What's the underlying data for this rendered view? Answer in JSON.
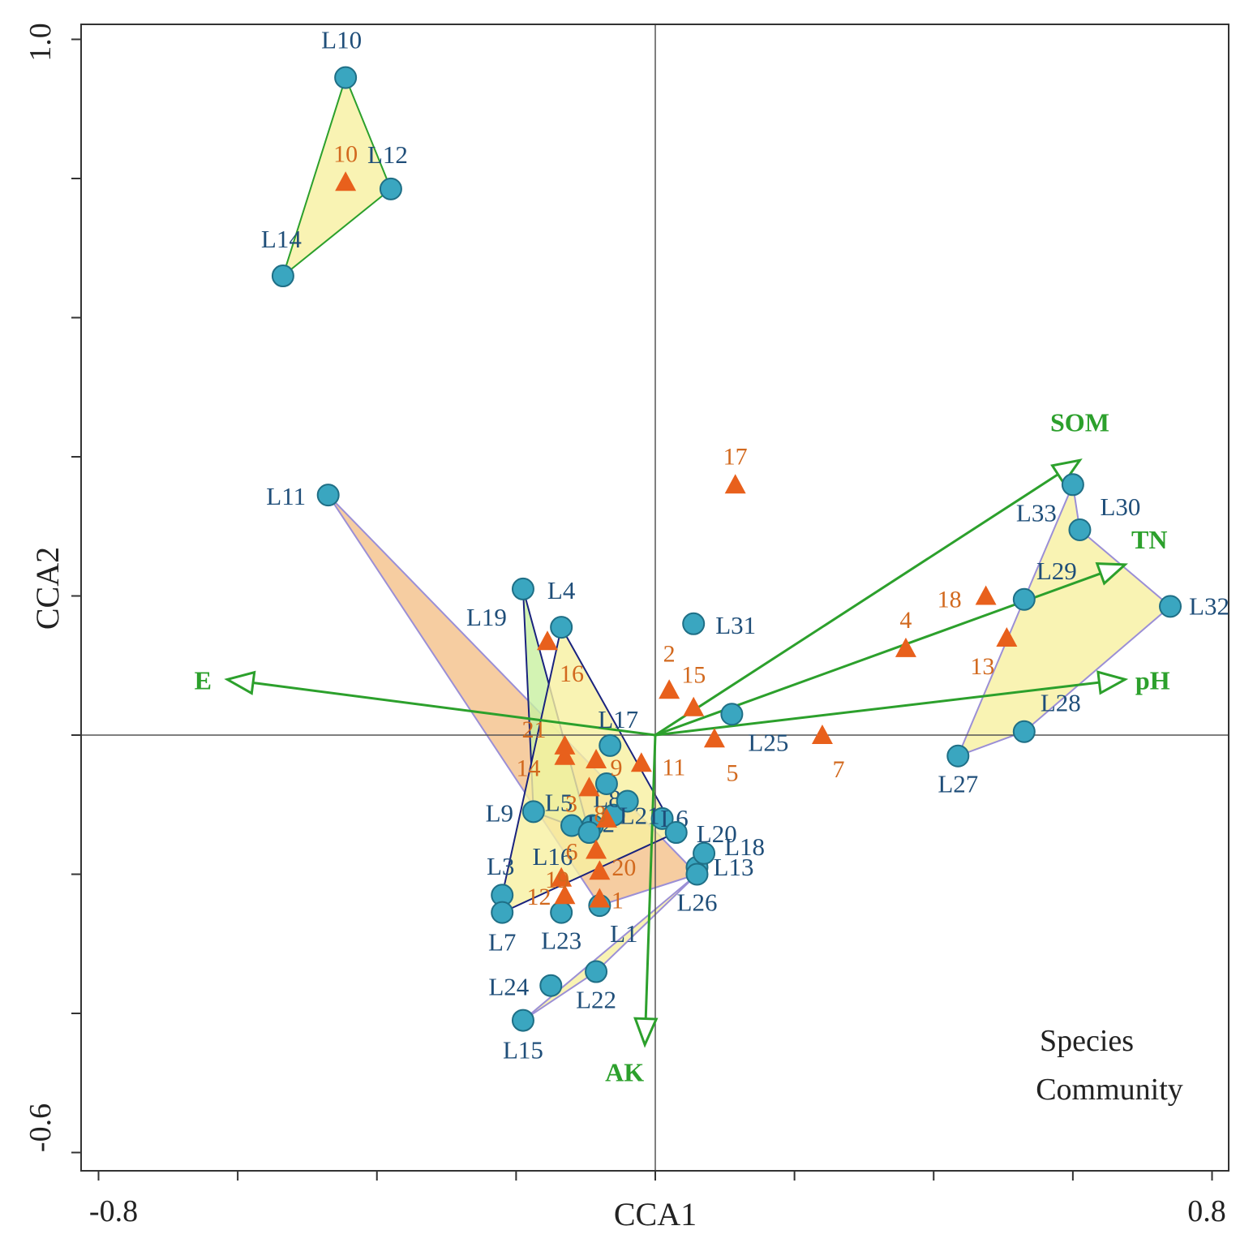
{
  "chart_data": {
    "type": "scatter",
    "xlabel": "CCA1",
    "ylabel": "CCA2",
    "xlim": [
      -0.8,
      0.8
    ],
    "ylim": [
      -0.6,
      1.0
    ],
    "x_tick_labels": [
      "-0.8",
      "0.8"
    ],
    "y_tick_labels": [
      "1.0",
      "-0.6"
    ],
    "legend": [
      "Species",
      "Community"
    ],
    "colors": {
      "site_fill": "#3aa6c0",
      "site_stroke": "#1f6f86",
      "site_label": "#1f4e79",
      "species_fill": "#e8601c",
      "species_label": "#d2691e",
      "env_arrow": "#2ca02c",
      "hull_yellow": "#f7f0a0",
      "hull_green": "#c8f0a0",
      "hull_orange": "#f4c08a",
      "hull_edge_blue": "#1a237e",
      "hull_edge_violet": "#9b8fd6"
    },
    "sites": [
      {
        "label": "L1",
        "x": -0.08,
        "y": -0.245
      },
      {
        "label": "L2",
        "x": -0.09,
        "y": -0.13
      },
      {
        "label": "L3",
        "x": -0.22,
        "y": -0.23
      },
      {
        "label": "L4",
        "x": -0.135,
        "y": 0.155
      },
      {
        "label": "L5",
        "x": -0.12,
        "y": -0.13
      },
      {
        "label": "L6",
        "x": 0.01,
        "y": -0.12
      },
      {
        "label": "L7",
        "x": -0.22,
        "y": -0.255
      },
      {
        "label": "L8",
        "x": -0.06,
        "y": -0.115
      },
      {
        "label": "L9",
        "x": -0.175,
        "y": -0.11
      },
      {
        "label": "L10",
        "x": -0.445,
        "y": 0.945
      },
      {
        "label": "L11",
        "x": -0.47,
        "y": 0.345
      },
      {
        "label": "L12",
        "x": -0.38,
        "y": 0.785
      },
      {
        "label": "L13",
        "x": 0.06,
        "y": -0.19
      },
      {
        "label": "L14",
        "x": -0.535,
        "y": 0.66
      },
      {
        "label": "L15",
        "x": -0.19,
        "y": -0.41
      },
      {
        "label": "L16",
        "x": -0.095,
        "y": -0.14
      },
      {
        "label": "L17",
        "x": -0.065,
        "y": -0.015
      },
      {
        "label": "L18",
        "x": 0.07,
        "y": -0.17
      },
      {
        "label": "L19",
        "x": -0.19,
        "y": 0.21
      },
      {
        "label": "L20",
        "x": 0.03,
        "y": -0.14
      },
      {
        "label": "L21",
        "x": -0.04,
        "y": -0.095
      },
      {
        "label": "L22",
        "x": -0.085,
        "y": -0.34
      },
      {
        "label": "L23",
        "x": -0.135,
        "y": -0.255
      },
      {
        "label": "L24",
        "x": -0.15,
        "y": -0.36
      },
      {
        "label": "L25",
        "x": 0.11,
        "y": 0.03
      },
      {
        "label": "L26",
        "x": 0.06,
        "y": -0.2
      },
      {
        "label": "L27",
        "x": 0.435,
        "y": -0.03
      },
      {
        "label": "L28",
        "x": 0.53,
        "y": 0.005
      },
      {
        "label": "L29",
        "x": 0.53,
        "y": 0.195
      },
      {
        "label": "L30",
        "x": 0.61,
        "y": 0.295
      },
      {
        "label": "L31",
        "x": 0.055,
        "y": 0.16
      },
      {
        "label": "L32",
        "x": 0.74,
        "y": 0.185
      },
      {
        "label": "L33",
        "x": 0.6,
        "y": 0.36
      },
      {
        "label": "",
        "x": -0.07,
        "y": -0.07
      }
    ],
    "species": [
      {
        "label": "1",
        "x": -0.08,
        "y": -0.235
      },
      {
        "label": "2",
        "x": 0.02,
        "y": 0.065
      },
      {
        "label": "3",
        "x": -0.095,
        "y": -0.075
      },
      {
        "label": "4",
        "x": 0.36,
        "y": 0.125
      },
      {
        "label": "5",
        "x": 0.085,
        "y": -0.005
      },
      {
        "label": "6",
        "x": -0.085,
        "y": -0.165
      },
      {
        "label": "7",
        "x": 0.24,
        "y": 0.0
      },
      {
        "label": "8",
        "x": -0.07,
        "y": -0.12
      },
      {
        "label": "9",
        "x": -0.085,
        "y": -0.035
      },
      {
        "label": "10",
        "x": -0.445,
        "y": 0.795
      },
      {
        "label": "11",
        "x": -0.02,
        "y": -0.04
      },
      {
        "label": "12",
        "x": -0.13,
        "y": -0.23
      },
      {
        "label": "13",
        "x": 0.505,
        "y": 0.14
      },
      {
        "label": "14",
        "x": -0.13,
        "y": -0.03
      },
      {
        "label": "15",
        "x": 0.055,
        "y": 0.04
      },
      {
        "label": "16",
        "x": -0.155,
        "y": 0.135
      },
      {
        "label": "17",
        "x": 0.115,
        "y": 0.36
      },
      {
        "label": "18",
        "x": 0.475,
        "y": 0.2
      },
      {
        "label": "19",
        "x": -0.135,
        "y": -0.205
      },
      {
        "label": "20",
        "x": -0.08,
        "y": -0.195
      },
      {
        "label": "21",
        "x": -0.13,
        "y": -0.015
      }
    ],
    "env_vectors": [
      {
        "label": "SOM",
        "x": 0.61,
        "y": 0.395
      },
      {
        "label": "TN",
        "x": 0.675,
        "y": 0.245
      },
      {
        "label": "pH",
        "x": 0.675,
        "y": 0.08
      },
      {
        "label": "E",
        "x": -0.615,
        "y": 0.08
      },
      {
        "label": "AK",
        "x": -0.015,
        "y": -0.445
      }
    ],
    "hulls": [
      {
        "fill": "hull_yellow",
        "edge": "env_arrow",
        "points": [
          "L10",
          "L12",
          "L14"
        ]
      },
      {
        "fill": "hull_orange",
        "edge": "hull_edge_violet",
        "points": [
          "L11",
          "L26",
          "L1"
        ]
      },
      {
        "fill": "hull_green",
        "edge": "hull_edge_blue",
        "points": [
          "L19",
          "L9",
          "L16"
        ]
      },
      {
        "fill": "hull_yellow",
        "edge": "hull_edge_blue",
        "points": [
          "L4",
          "L20",
          "L7",
          "L3"
        ]
      },
      {
        "fill": "hull_yellow",
        "edge": "hull_edge_violet",
        "points": [
          "L15",
          "L22",
          "L26"
        ]
      },
      {
        "fill": "hull_yellow",
        "edge": "hull_edge_violet",
        "points": [
          "L33",
          "L30",
          "L32",
          "L28",
          "L27",
          "L29"
        ]
      }
    ]
  }
}
